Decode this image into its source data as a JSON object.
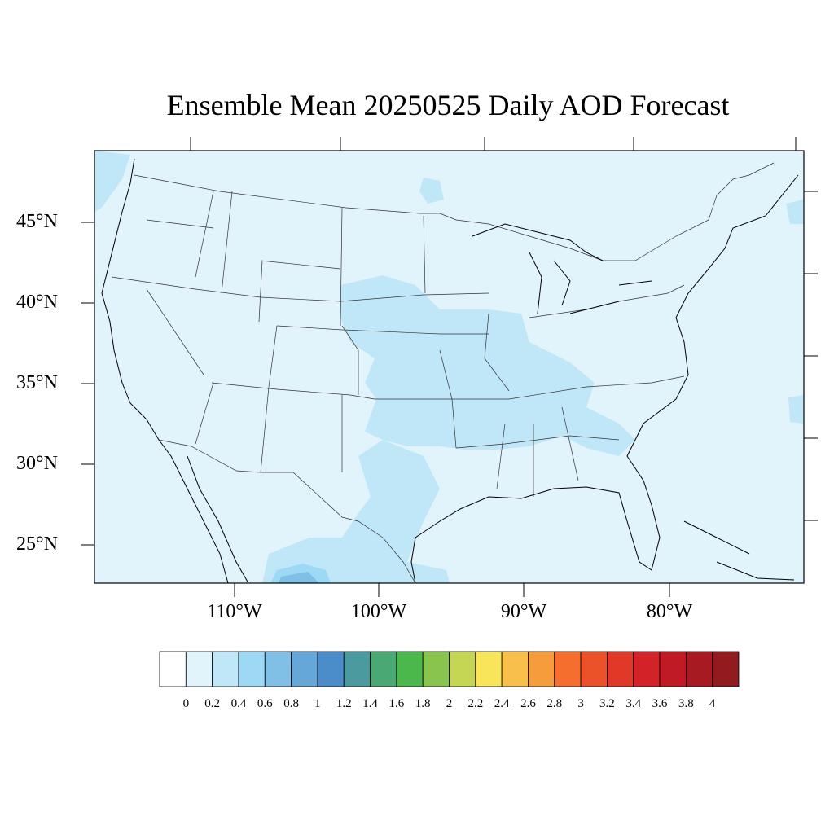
{
  "title": "Ensemble Mean 20250525 Daily AOD Forecast",
  "map": {
    "lat_labels": [
      "45°N",
      "40°N",
      "35°N",
      "30°N",
      "25°N"
    ],
    "lon_labels": [
      "110°W",
      "100°W",
      "90°W",
      "80°W"
    ]
  },
  "colorbar": {
    "labels": [
      "0",
      "0.2",
      "0.4",
      "0.6",
      "0.8",
      "1",
      "1.2",
      "1.4",
      "1.6",
      "1.8",
      "2",
      "2.2",
      "2.4",
      "2.6",
      "2.8",
      "3",
      "3.2",
      "3.4",
      "3.6",
      "3.8",
      "4"
    ],
    "colors": [
      "#ffffff",
      "#e1f3fb",
      "#bfe7f8",
      "#9dd8f4",
      "#80bfe6",
      "#66a7da",
      "#4a8dca",
      "#4a9aa0",
      "#4aa875",
      "#4bb84b",
      "#89c54c",
      "#c5d654",
      "#f9e55a",
      "#f8c04a",
      "#f79c3c",
      "#f56e2d",
      "#ec5229",
      "#e03927",
      "#d42328",
      "#c01b25",
      "#a81a22",
      "#931a1e"
    ]
  }
}
